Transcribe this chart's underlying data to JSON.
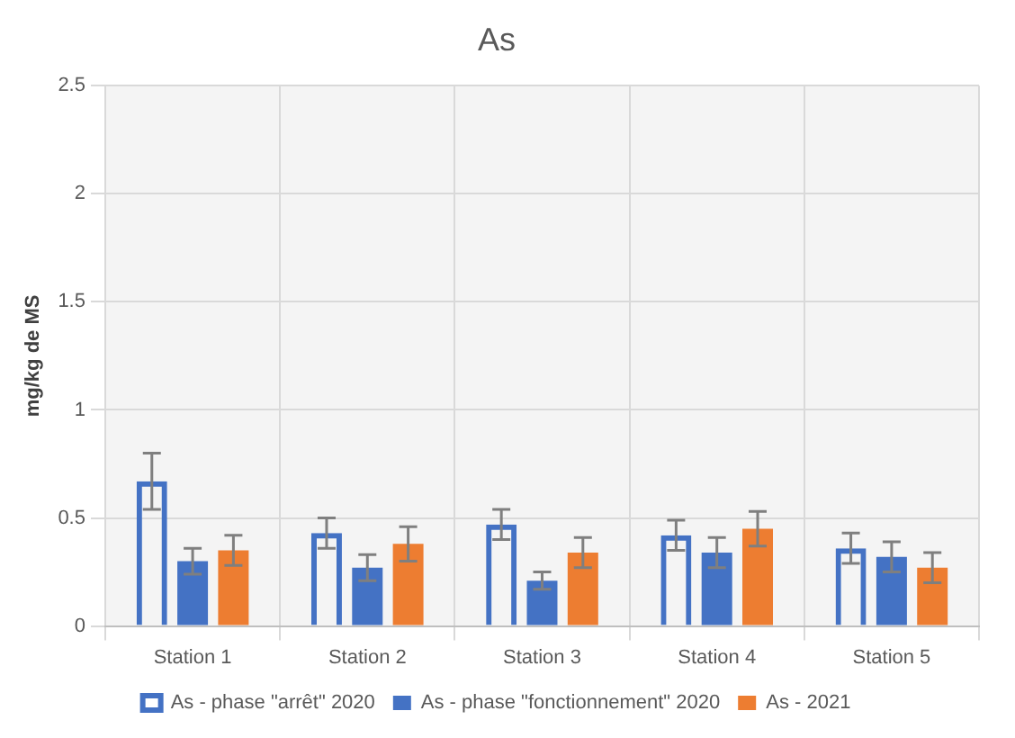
{
  "chart_data": {
    "type": "bar",
    "title": "As",
    "ylabel": "mg/kg de MS",
    "categories": [
      "Station 1",
      "Station 2",
      "Station 3",
      "Station 4",
      "Station 5"
    ],
    "series": [
      {
        "name": "As - phase \"arrêt\" 2020",
        "color": "#4472c4",
        "values": [
          0.67,
          0.43,
          0.47,
          0.42,
          0.36
        ],
        "errors": [
          0.13,
          0.07,
          0.07,
          0.07,
          0.07
        ]
      },
      {
        "name": "As - phase \"fonctionnement\" 2020",
        "color": "#4472c4",
        "values": [
          0.3,
          0.27,
          0.21,
          0.34,
          0.32
        ],
        "errors": [
          0.06,
          0.06,
          0.04,
          0.07,
          0.07
        ]
      },
      {
        "name": "As - 2021",
        "color": "#ed7d31",
        "values": [
          0.35,
          0.38,
          0.34,
          0.45,
          0.27
        ],
        "errors": [
          0.07,
          0.08,
          0.07,
          0.08,
          0.07
        ]
      }
    ],
    "ylim": [
      0,
      2.5
    ],
    "yticks": [
      0,
      0.5,
      1,
      1.5,
      2,
      2.5
    ],
    "grid": true,
    "legend": "bottom"
  }
}
